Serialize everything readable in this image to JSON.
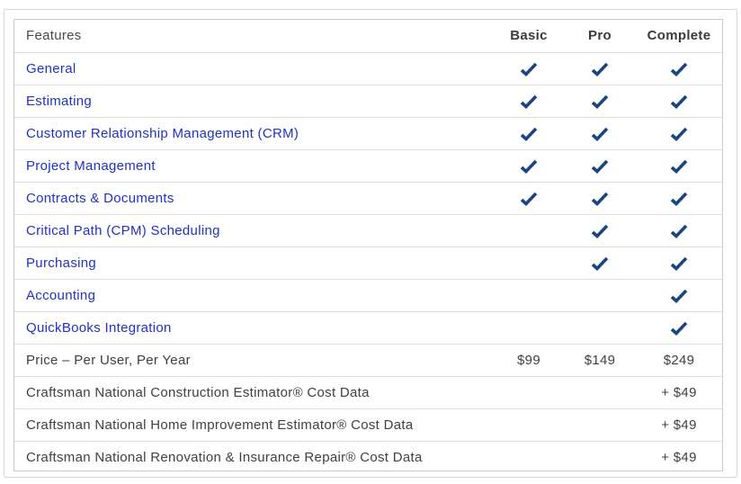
{
  "colors": {
    "link_blue": "#1e32c8",
    "check_navy": "#1a4582",
    "text_dark": "#3f3f3f"
  },
  "table": {
    "header": {
      "features_label": "Features",
      "plans": [
        "Basic",
        "Pro",
        "Complete"
      ]
    },
    "rows": [
      {
        "label": "General",
        "type": "link",
        "cells": [
          "check",
          "check",
          "check"
        ]
      },
      {
        "label": "Estimating",
        "type": "link",
        "cells": [
          "check",
          "check",
          "check"
        ]
      },
      {
        "label": "Customer Relationship Management (CRM)",
        "type": "link",
        "cells": [
          "check",
          "check",
          "check"
        ]
      },
      {
        "label": "Project Management",
        "type": "link",
        "cells": [
          "check",
          "check",
          "check"
        ]
      },
      {
        "label": "Contracts & Documents",
        "type": "link",
        "cells": [
          "check",
          "check",
          "check"
        ]
      },
      {
        "label": "Critical Path (CPM) Scheduling",
        "type": "link",
        "cells": [
          "",
          "check",
          "check"
        ]
      },
      {
        "label": "Purchasing",
        "type": "link",
        "cells": [
          "",
          "check",
          "check"
        ]
      },
      {
        "label": "Accounting",
        "type": "link",
        "cells": [
          "",
          "",
          "check"
        ]
      },
      {
        "label": "QuickBooks Integration",
        "type": "link",
        "cells": [
          "",
          "",
          "check"
        ]
      },
      {
        "label": "Price – Per User, Per Year",
        "type": "text",
        "cells": [
          "$99",
          "$149",
          "$249"
        ]
      },
      {
        "label": "Craftsman National Construction Estimator® Cost Data",
        "type": "text",
        "cells": [
          "",
          "",
          "+ $49"
        ]
      },
      {
        "label": "Craftsman National Home Improvement Estimator® Cost Data",
        "type": "text",
        "cells": [
          "",
          "",
          "+ $49"
        ]
      },
      {
        "label": "Craftsman National Renovation & Insurance Repair® Cost Data",
        "type": "text",
        "cells": [
          "",
          "",
          "+ $49"
        ]
      }
    ]
  }
}
